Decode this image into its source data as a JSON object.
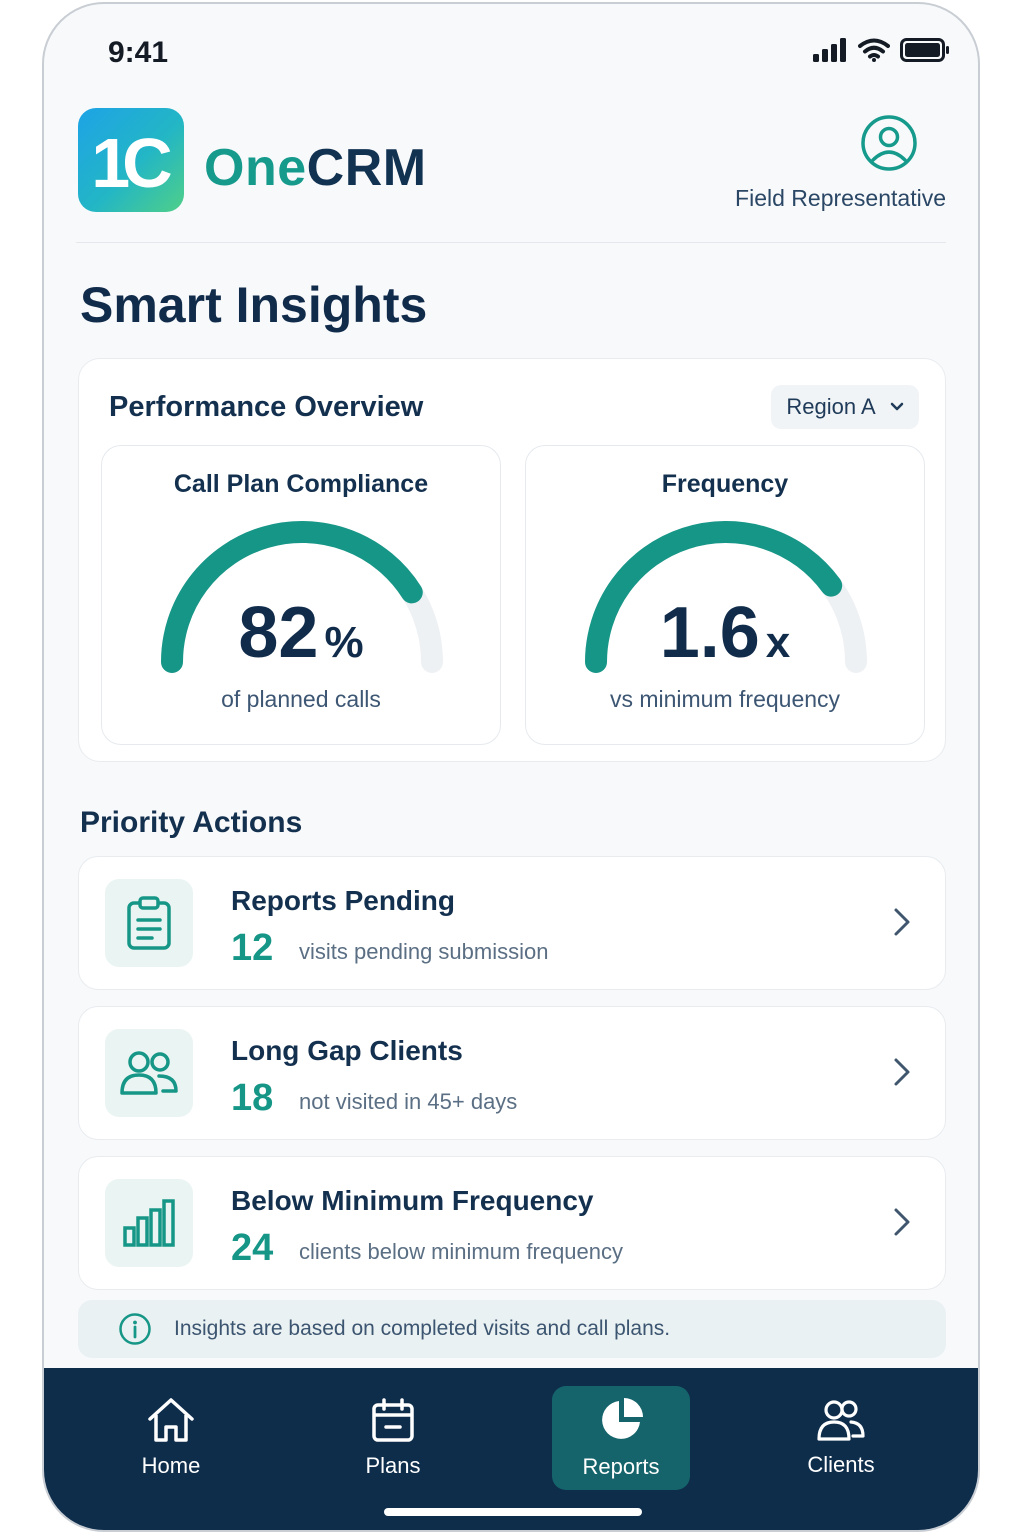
{
  "status_bar": {
    "time": "9:41"
  },
  "header": {
    "logo_text": "1C",
    "brand_part1": "One",
    "brand_part2": "CRM",
    "user_role": "Field Representative"
  },
  "page_title": "Smart Insights",
  "performance": {
    "title": "Performance Overview",
    "region_selected": "Region A",
    "gauges": [
      {
        "title": "Call Plan Compliance",
        "value": "82",
        "unit": "%",
        "subtitle": "of planned calls",
        "fill_fraction": 0.82
      },
      {
        "title": "Frequency",
        "value": "1.6",
        "unit": "x",
        "subtitle": "vs minimum frequency",
        "fill_fraction": 0.8
      }
    ]
  },
  "priority": {
    "title": "Priority Actions",
    "actions": [
      {
        "title": "Reports Pending",
        "count": "12",
        "desc": "visits pending submission",
        "icon": "clipboard-icon"
      },
      {
        "title": "Long Gap Clients",
        "count": "18",
        "desc": "not visited in 45+ days",
        "icon": "users-icon"
      },
      {
        "title": "Below Minimum Frequency",
        "count": "24",
        "desc": "clients below minimum frequency",
        "icon": "bar-chart-icon"
      }
    ]
  },
  "info_note": "Insights are based on completed visits and call plans.",
  "colors": {
    "accent": "#169686",
    "navy": "#0e2d4b",
    "active_nav": "#15646b"
  },
  "nav": {
    "items": [
      {
        "label": "Home",
        "icon": "home-icon",
        "active": false
      },
      {
        "label": "Plans",
        "icon": "calendar-icon",
        "active": false
      },
      {
        "label": "Reports",
        "icon": "pie-chart-icon",
        "active": true
      },
      {
        "label": "Clients",
        "icon": "clients-icon",
        "active": false
      }
    ]
  }
}
